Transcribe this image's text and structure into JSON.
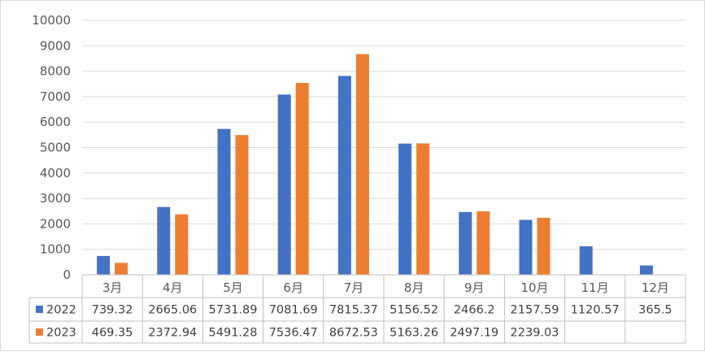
{
  "chart_data": {
    "type": "bar",
    "categories": [
      "3月",
      "4月",
      "5月",
      "6月",
      "7月",
      "8月",
      "9月",
      "10月",
      "11月",
      "12月"
    ],
    "series": [
      {
        "name": "2022",
        "color": "#4472c4",
        "values": [
          739.32,
          2665.06,
          5731.89,
          7081.69,
          7815.37,
          5156.52,
          2466.2,
          2157.59,
          1120.57,
          365.5
        ],
        "labels": [
          "739.32",
          "2665.06",
          "5731.89",
          "7081.69",
          "7815.37",
          "5156.52",
          "2466.2",
          "2157.59",
          "1120.57",
          "365.5"
        ]
      },
      {
        "name": "2023",
        "color": "#ed7d31",
        "values": [
          469.35,
          2372.94,
          5491.28,
          7536.47,
          8672.53,
          5163.26,
          2497.19,
          2239.03,
          null,
          null
        ],
        "labels": [
          "469.35",
          "2372.94",
          "5491.28",
          "7536.47",
          "8672.53",
          "5163.26",
          "2497.19",
          "2239.03",
          "",
          ""
        ]
      }
    ],
    "ylim": [
      0,
      10000
    ],
    "yticks": [
      "0",
      "1000",
      "2000",
      "3000",
      "4000",
      "5000",
      "6000",
      "7000",
      "8000",
      "9000",
      "10000"
    ],
    "grid": true,
    "legend": "data-table"
  }
}
